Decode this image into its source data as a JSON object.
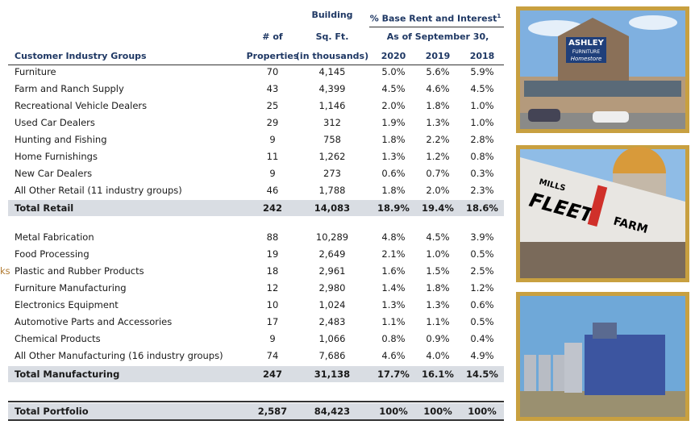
{
  "header": {
    "building": "Building",
    "rent_title": "% Base Rent and Interest",
    "footnote": "1",
    "num_of": "# of",
    "sq_ft": "Sq. Ft.",
    "as_of": "As of September 30,",
    "columns": [
      "Customer Industry Groups",
      "Properties",
      "(in thousands)",
      "2020",
      "2019",
      "2018"
    ]
  },
  "side_fragment": "ks",
  "retail": {
    "rows": [
      [
        "Furniture",
        "70",
        "4,145",
        "5.0%",
        "5.6%",
        "5.9%"
      ],
      [
        "Farm and Ranch Supply",
        "43",
        "4,399",
        "4.5%",
        "4.6%",
        "4.5%"
      ],
      [
        "Recreational Vehicle Dealers",
        "25",
        "1,146",
        "2.0%",
        "1.8%",
        "1.0%"
      ],
      [
        "Used Car Dealers",
        "29",
        "312",
        "1.9%",
        "1.3%",
        "1.0%"
      ],
      [
        "Hunting and Fishing",
        "9",
        "758",
        "1.8%",
        "2.2%",
        "2.8%"
      ],
      [
        "Home Furnishings",
        "11",
        "1,262",
        "1.3%",
        "1.2%",
        "0.8%"
      ],
      [
        "New Car Dealers",
        "9",
        "273",
        "0.6%",
        "0.7%",
        "0.3%"
      ],
      [
        "All Other Retail (11 industry groups)",
        "46",
        "1,788",
        "1.8%",
        "2.0%",
        "2.3%"
      ]
    ],
    "total": [
      "Total Retail",
      "242",
      "14,083",
      "18.9%",
      "19.4%",
      "18.6%"
    ]
  },
  "manufacturing": {
    "rows": [
      [
        "Metal Fabrication",
        "88",
        "10,289",
        "4.8%",
        "4.5%",
        "3.9%"
      ],
      [
        "Food Processing",
        "19",
        "2,649",
        "2.1%",
        "1.0%",
        "0.5%"
      ],
      [
        "Plastic and Rubber Products",
        "18",
        "2,961",
        "1.6%",
        "1.5%",
        "2.5%"
      ],
      [
        "Furniture Manufacturing",
        "12",
        "2,980",
        "1.4%",
        "1.8%",
        "1.2%"
      ],
      [
        "Electronics Equipment",
        "10",
        "1,024",
        "1.3%",
        "1.3%",
        "0.6%"
      ],
      [
        "Automotive Parts and Accessories",
        "17",
        "2,483",
        "1.1%",
        "1.1%",
        "0.5%"
      ],
      [
        "Chemical Products",
        "9",
        "1,066",
        "0.8%",
        "0.9%",
        "0.4%"
      ],
      [
        "All Other Manufacturing (16 industry groups)",
        "74",
        "7,686",
        "4.6%",
        "4.0%",
        "4.9%"
      ]
    ],
    "total": [
      "Total Manufacturing",
      "247",
      "31,138",
      "17.7%",
      "16.1%",
      "14.5%"
    ]
  },
  "portfolio_total": [
    "Total Portfolio",
    "2,587",
    "84,423",
    "100%",
    "100%",
    "100%"
  ],
  "images": [
    {
      "sign": [
        "ASHLEY",
        "FURNITURE",
        "Homestore"
      ]
    },
    {
      "sign": [
        "MILLS",
        "FLEET",
        "FARM"
      ]
    }
  ]
}
